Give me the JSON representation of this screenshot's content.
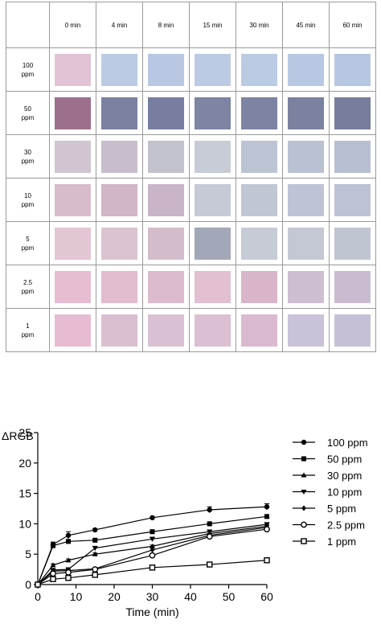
{
  "table": {
    "time_headers": [
      "0 min",
      "4 min",
      "8 min",
      "15 min",
      "30 min",
      "45 min",
      "60 min"
    ],
    "rows": [
      {
        "label_lines": [
          "100",
          "ppm"
        ],
        "colors": [
          "#e2c3d6",
          "#bccbe3",
          "#b9c7e2",
          "#bccbe3",
          "#bbcbe3",
          "#b9c8e2",
          "#b8c7e1"
        ]
      },
      {
        "label_lines": [
          "50",
          "ppm"
        ],
        "colors": [
          "#9c6f8c",
          "#7b82a1",
          "#787e9f",
          "#7d85a3",
          "#7d84a3",
          "#7b82a0",
          "#777d9c"
        ]
      },
      {
        "label_lines": [
          "30",
          "ppm"
        ],
        "colors": [
          "#d0c5d1",
          "#c8bdcd",
          "#c2c2cd",
          "#c7ccd6",
          "#bcc3d3",
          "#b9c1d2",
          "#b6bfd2"
        ]
      },
      {
        "label_lines": [
          "10",
          "ppm"
        ],
        "colors": [
          "#d9bccb",
          "#d2b5c6",
          "#cab4c7",
          "#c6c9d6",
          "#c1c6d5",
          "#bec3d5",
          "#bdc2d4"
        ]
      },
      {
        "label_lines": [
          "5",
          "ppm"
        ],
        "colors": [
          "#e3c6d4",
          "#dcc3d1",
          "#d3bccc",
          "#a3a8b8",
          "#c7cbd6",
          "#c4c8d4",
          "#c0c5d2"
        ]
      },
      {
        "label_lines": [
          "2.5",
          "ppm"
        ],
        "colors": [
          "#e7bdd2",
          "#e2bccf",
          "#ddbbce",
          "#e2c0d2",
          "#d9b5c9",
          "#cdbed1",
          "#c9bcd0"
        ]
      },
      {
        "label_lines": [
          "1",
          "ppm"
        ],
        "colors": [
          "#e7bcd3",
          "#dabfd1",
          "#d9c1d3",
          "#dcbfd2",
          "#dabad1",
          "#c9c2d8",
          "#c6c0d7"
        ]
      }
    ]
  },
  "chart_data": {
    "type": "line",
    "ylabel": "ΔRGB",
    "xlabel": "Time (min)",
    "xlim": [
      0,
      60
    ],
    "ylim": [
      0,
      25
    ],
    "xticks": [
      0,
      10,
      20,
      30,
      40,
      50,
      60
    ],
    "yticks": [
      0,
      5,
      10,
      15,
      20,
      25
    ],
    "legend_position": "right",
    "x": [
      0,
      4,
      8,
      15,
      30,
      45,
      60
    ],
    "series": [
      {
        "name": "100 ppm",
        "marker": "circle",
        "values": [
          0,
          6.6,
          8.1,
          9.0,
          11.0,
          12.3,
          12.8
        ],
        "errors": [
          0,
          0.4,
          0.6,
          0.2,
          0.2,
          0.5,
          0.5
        ]
      },
      {
        "name": "50 ppm",
        "marker": "square",
        "values": [
          0,
          6.4,
          7.1,
          7.3,
          8.7,
          10.0,
          11.2
        ],
        "errors": [
          0,
          0.3,
          0.3,
          0.2,
          0.2,
          0.2,
          0.2
        ]
      },
      {
        "name": "30 ppm",
        "marker": "triangle-up",
        "values": [
          0,
          3.2,
          4.0,
          5.0,
          6.3,
          8.4,
          9.6
        ],
        "errors": [
          0,
          0.2,
          0.2,
          0.2,
          0.2,
          0.3,
          0.3
        ]
      },
      {
        "name": "10 ppm",
        "marker": "triangle-down",
        "values": [
          0,
          2.4,
          2.5,
          6.0,
          7.5,
          8.7,
          9.9
        ],
        "errors": [
          0,
          0.2,
          0.2,
          0.3,
          0.3,
          0.3,
          0.3
        ]
      },
      {
        "name": "5 ppm",
        "marker": "diamond",
        "values": [
          0,
          2.2,
          2.3,
          2.6,
          5.7,
          8.1,
          9.4
        ],
        "errors": [
          0,
          0.2,
          0.2,
          0.2,
          0.3,
          0.3,
          0.3
        ]
      },
      {
        "name": "2.5 ppm",
        "marker": "circle-open",
        "values": [
          0,
          1.8,
          2.0,
          2.5,
          4.8,
          7.9,
          9.1
        ],
        "errors": [
          0,
          0.2,
          0.2,
          0.2,
          0.3,
          0.3,
          0.3
        ]
      },
      {
        "name": "1 ppm",
        "marker": "square-open",
        "values": [
          0,
          0.9,
          1.1,
          1.6,
          2.8,
          3.3,
          4.0
        ],
        "errors": [
          0,
          0.1,
          0.1,
          0.1,
          0.2,
          0.2,
          0.2
        ]
      }
    ]
  }
}
